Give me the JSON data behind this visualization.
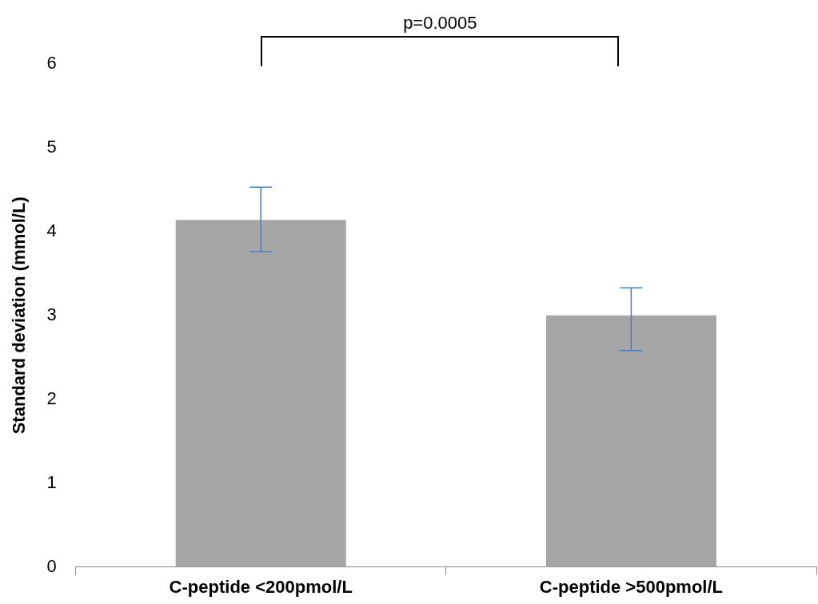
{
  "chart_data": {
    "type": "bar",
    "ylabel": "Standard deviation (mmol/L)",
    "categories": [
      "C-peptide <200pmol/L",
      "C-peptide >500pmol/L"
    ],
    "values": [
      4.14,
      3.0
    ],
    "color": "#a6a6a6",
    "errors": [
      [
        3.76,
        4.53
      ],
      [
        2.58,
        3.33
      ]
    ],
    "ylim": [
      0,
      6
    ],
    "yticks": [
      0,
      1,
      2,
      3,
      4,
      5,
      6
    ],
    "grid": false,
    "legend": false,
    "annotations": [
      "p=0.0005"
    ]
  }
}
